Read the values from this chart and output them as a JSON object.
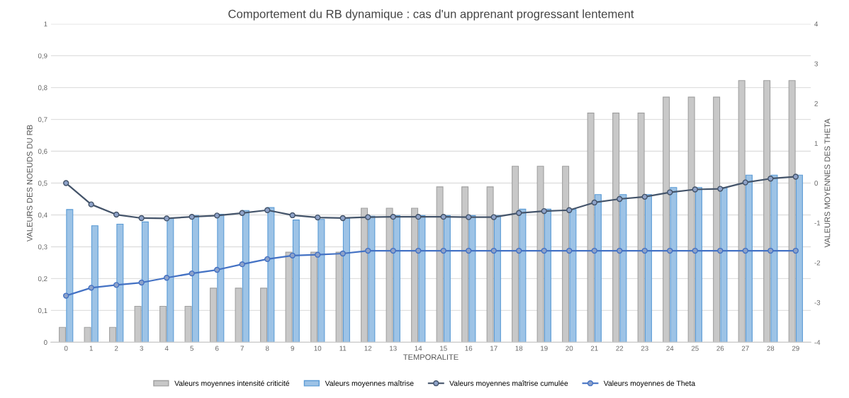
{
  "chart_data": {
    "type": "bar",
    "title": "Comportement du RB dynamique : cas d'un apprenant progressant lentement",
    "xlabel": "TEMPORALITE",
    "ylabel": "VALEURS DES NOEUDS DU RB",
    "y2label": "VALEURS MOYENNES DES THETA",
    "categories": [
      "0",
      "1",
      "2",
      "3",
      "4",
      "5",
      "6",
      "7",
      "8",
      "9",
      "10",
      "11",
      "12",
      "13",
      "14",
      "15",
      "16",
      "17",
      "18",
      "19",
      "20",
      "21",
      "22",
      "23",
      "24",
      "25",
      "26",
      "27",
      "28",
      "29"
    ],
    "series": [
      {
        "name": "Valeurs moyennes intensité criticité",
        "color": "#c8c8c8",
        "values": [
          0.047,
          0.047,
          0.047,
          0.113,
          0.113,
          0.113,
          0.17,
          0.17,
          0.17,
          0.283,
          0.283,
          0.283,
          0.421,
          0.421,
          0.421,
          0.488,
          0.488,
          0.488,
          0.553,
          0.553,
          0.553,
          0.72,
          0.72,
          0.72,
          0.77,
          0.77,
          0.77,
          0.822,
          0.822,
          0.822
        ]
      },
      {
        "name": "Valeurs moyennes maîtrise",
        "color": "#9dc3e6",
        "values": [
          0.417,
          0.366,
          0.371,
          0.378,
          0.39,
          0.398,
          0.402,
          0.414,
          0.423,
          0.384,
          0.386,
          0.39,
          0.396,
          0.398,
          0.398,
          0.398,
          0.398,
          0.398,
          0.418,
          0.418,
          0.417,
          0.464,
          0.464,
          0.464,
          0.486,
          0.486,
          0.486,
          0.525,
          0.525,
          0.525
        ]
      },
      {
        "name": "Valeurs moyennes maîtrise cumulée",
        "type": "line",
        "color": "#44546a",
        "values": [
          0.5,
          0.433,
          0.401,
          0.39,
          0.389,
          0.394,
          0.398,
          0.406,
          0.415,
          0.399,
          0.392,
          0.39,
          0.393,
          0.394,
          0.394,
          0.394,
          0.393,
          0.393,
          0.406,
          0.412,
          0.415,
          0.439,
          0.45,
          0.457,
          0.471,
          0.48,
          0.482,
          0.502,
          0.514,
          0.52
        ]
      },
      {
        "name": "Valeurs moyennes de Theta",
        "type": "line",
        "axis": "y2",
        "color": "#4472c4",
        "values": [
          -2.83,
          -2.63,
          -2.56,
          -2.5,
          -2.38,
          -2.27,
          -2.18,
          -2.04,
          -1.91,
          -1.82,
          -1.8,
          -1.77,
          -1.7,
          -1.7,
          -1.7,
          -1.7,
          -1.7,
          -1.7,
          -1.7,
          -1.7,
          -1.7,
          -1.7,
          -1.7,
          -1.7,
          -1.7,
          -1.7,
          -1.7,
          -1.7,
          -1.7,
          -1.7
        ]
      }
    ],
    "ylim": [
      0,
      1
    ],
    "yticks": [
      0,
      {
        "value": 0.1,
        "label": "0,1"
      },
      {
        "value": 0.2,
        "label": "0,2"
      },
      {
        "value": 0.3,
        "label": "0,3"
      },
      {
        "value": 0.4,
        "label": "0,4"
      },
      {
        "value": 0.5,
        "label": "0,5"
      },
      {
        "value": 0.6,
        "label": "0,6"
      },
      {
        "value": 0.7,
        "label": "0,7"
      },
      {
        "value": 0.8,
        "label": "0,8"
      },
      {
        "value": 0.9,
        "label": "0,9"
      },
      1
    ],
    "y2lim": [
      -4,
      4
    ],
    "y2ticks": [
      -4,
      -3,
      -2,
      -1,
      0,
      1,
      2,
      3,
      4
    ],
    "grid": "y",
    "legend": "bottom",
    "marker": "circle",
    "line_style": "solid"
  }
}
